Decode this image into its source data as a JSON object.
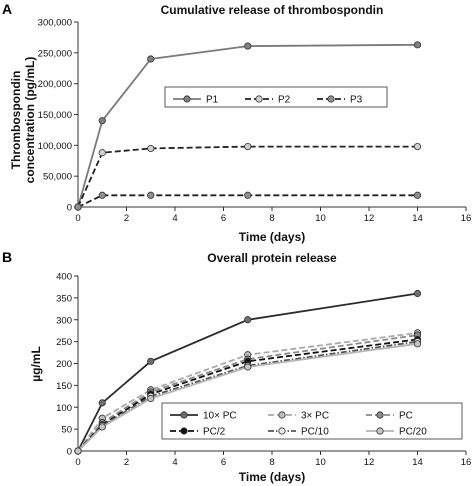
{
  "chart_data": [
    {
      "panel_label": "A",
      "type": "line",
      "title": "Cumulative release of thrombospondin",
      "xlabel": "Time (days)",
      "ylabel": [
        "Thrombospondin",
        "concentration (pg/mL)"
      ],
      "xlim": [
        0,
        16
      ],
      "ylim": [
        0,
        300000
      ],
      "xticks": [
        "0",
        "2",
        "4",
        "6",
        "8",
        "10",
        "12",
        "14",
        "16"
      ],
      "yticks": [
        "0",
        "50,000",
        "100,000",
        "150,000",
        "200,000",
        "250,000",
        "300,000"
      ],
      "grid": false,
      "legend_position": "top-center",
      "series": [
        {
          "name": "P1",
          "color": "#7a7a7a",
          "dash": "solid",
          "marker_fill": "#808080",
          "x": [
            0,
            1,
            3,
            7,
            14
          ],
          "y": [
            0,
            140000,
            240000,
            261000,
            263000
          ]
        },
        {
          "name": "P2",
          "color": "#222222",
          "dash": "dashed",
          "marker_fill": "#cfcfcf",
          "x": [
            0,
            1,
            3,
            7,
            14
          ],
          "y": [
            0,
            88000,
            95000,
            98000,
            98000
          ]
        },
        {
          "name": "P3",
          "color": "#222222",
          "dash": "dashed",
          "marker_fill": "#909090",
          "x": [
            0,
            1,
            3,
            7,
            14
          ],
          "y": [
            0,
            19000,
            19000,
            19000,
            19000
          ]
        }
      ]
    },
    {
      "panel_label": "B",
      "type": "line",
      "title": "Overall protein release",
      "xlabel": "Time (days)",
      "ylabel": [
        "µg/mL"
      ],
      "xlim": [
        0,
        16
      ],
      "ylim": [
        0,
        400
      ],
      "xticks": [
        "0",
        "2",
        "4",
        "6",
        "8",
        "10",
        "12",
        "14",
        "16"
      ],
      "yticks": [
        "0",
        "50",
        "100",
        "150",
        "200",
        "250",
        "300",
        "350",
        "400"
      ],
      "grid": false,
      "legend_position": "bottom-right",
      "series": [
        {
          "name": "10× PC",
          "color": "#2b2b2b",
          "dash": "solid",
          "marker_fill": "#6e6e6e",
          "x": [
            0,
            1,
            3,
            7,
            14
          ],
          "y": [
            0,
            110,
            205,
            300,
            360
          ]
        },
        {
          "name": "3× PC",
          "color": "#a9a9a9",
          "dash": "dashed",
          "marker_fill": "#bdbdbd",
          "x": [
            0,
            1,
            3,
            7,
            14
          ],
          "y": [
            0,
            75,
            140,
            220,
            270
          ]
        },
        {
          "name": "PC",
          "color": "#8a8a8a",
          "dash": "dashed",
          "marker_fill": "#8a8a8a",
          "x": [
            0,
            1,
            3,
            7,
            14
          ],
          "y": [
            0,
            65,
            135,
            210,
            265
          ]
        },
        {
          "name": "PC/2",
          "color": "#111111",
          "dash": "dashed",
          "marker_fill": "#111111",
          "x": [
            0,
            1,
            3,
            7,
            14
          ],
          "y": [
            0,
            60,
            130,
            205,
            255
          ]
        },
        {
          "name": "PC/10",
          "color": "#555555",
          "dash": "dashdot",
          "marker_fill": "#e6e6e6",
          "x": [
            0,
            1,
            3,
            7,
            14
          ],
          "y": [
            0,
            58,
            125,
            195,
            250
          ]
        },
        {
          "name": "PC/20",
          "color": "#b5b5b5",
          "dash": "solid",
          "marker_fill": "#c4c4c4",
          "x": [
            0,
            1,
            3,
            7,
            14
          ],
          "y": [
            0,
            55,
            120,
            192,
            245
          ]
        }
      ]
    }
  ]
}
